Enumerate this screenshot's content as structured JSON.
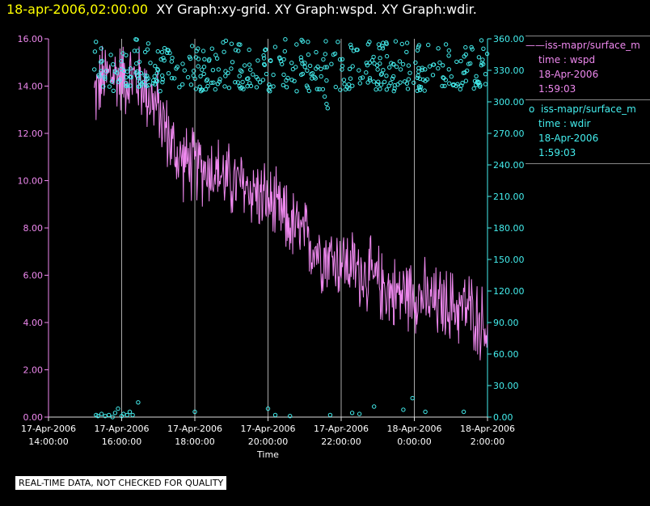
{
  "header": {
    "timestamp": "18-apr-2006,02:00:00",
    "graphs": "XY Graph:xy-grid.  XY Graph:wspd.  XY Graph:wdir."
  },
  "legend": {
    "series1": {
      "marker": "——",
      "name": "iss-mapr/surface_m",
      "var": "time : wspd",
      "date": "18-Apr-2006",
      "time": "1:59:03"
    },
    "series2": {
      "marker": "o",
      "name": "iss-mapr/surface_m",
      "var": "time : wdir",
      "date": "18-Apr-2006",
      "time": "1:59:03"
    }
  },
  "disclaimer": "REAL-TIME DATA, NOT CHECKED FOR QUALITY",
  "colors": {
    "wspd": "#ee88ee",
    "wdir": "#44eeee",
    "axis": "#dddddd",
    "grid": "#aaaaaa"
  },
  "chart_data": {
    "type": "line",
    "title": "XY Graph:xy-grid.  XY Graph:wspd.  XY Graph:wdir.",
    "xlabel": "Time",
    "ylabel_left": "",
    "ylabel_right": "",
    "xlim": [
      14.0,
      26.0
    ],
    "ylim_left": [
      0,
      16
    ],
    "ylim_right": [
      0,
      360
    ],
    "x_ticks": [
      {
        "value": 14,
        "line1": "17-Apr-2006",
        "line2": "14:00:00"
      },
      {
        "value": 16,
        "line1": "17-Apr-2006",
        "line2": "16:00:00"
      },
      {
        "value": 18,
        "line1": "17-Apr-2006",
        "line2": "18:00:00"
      },
      {
        "value": 20,
        "line1": "17-Apr-2006",
        "line2": "20:00:00"
      },
      {
        "value": 22,
        "line1": "17-Apr-2006",
        "line2": "22:00:00"
      },
      {
        "value": 24,
        "line1": "18-Apr-2006",
        "line2": "0:00:00"
      },
      {
        "value": 26,
        "line1": "18-Apr-2006",
        "line2": "2:00:00"
      }
    ],
    "y_left_ticks": [
      "0.00",
      "2.00",
      "4.00",
      "6.00",
      "8.00",
      "10.00",
      "12.00",
      "14.00",
      "16.00"
    ],
    "y_right_ticks": [
      "0.00",
      "30.00",
      "60.00",
      "90.00",
      "120.00",
      "150.00",
      "180.00",
      "210.00",
      "240.00",
      "270.00",
      "300.00",
      "330.00",
      "360.00"
    ],
    "series": [
      {
        "name": "wspd",
        "axis": "left",
        "style": "line",
        "start": 15.25,
        "end": 26.0,
        "trend_x": [
          15.25,
          15.5,
          15.75,
          16.0,
          16.5,
          17.0,
          17.5,
          18.0,
          18.5,
          19.0,
          19.5,
          20.0,
          20.5,
          21.0,
          21.5,
          22.0,
          22.5,
          23.0,
          23.5,
          24.0,
          24.5,
          25.0,
          25.5,
          26.0
        ],
        "trend_y": [
          13.6,
          14.3,
          14.5,
          14.4,
          14.2,
          13.0,
          11.0,
          10.6,
          10.5,
          9.9,
          9.7,
          9.1,
          8.3,
          7.6,
          6.9,
          6.6,
          6.2,
          5.7,
          5.2,
          5.3,
          4.8,
          4.7,
          4.6,
          3.7
        ],
        "noise": 1.3
      },
      {
        "name": "wdir",
        "axis": "right",
        "style": "scatter",
        "start": 15.25,
        "end": 26.0,
        "band_min": 310,
        "band_max": 360,
        "outliers": [
          {
            "x": 21.55,
            "y": 305
          },
          {
            "x": 21.6,
            "y": 298
          },
          {
            "x": 21.63,
            "y": 294
          },
          {
            "x": 21.5,
            "y": 312
          },
          {
            "x": 23.35,
            "y": 318
          },
          {
            "x": 23.4,
            "y": 322
          },
          {
            "x": 24.1,
            "y": 325
          },
          {
            "x": 24.15,
            "y": 322
          },
          {
            "x": 15.3,
            "y": 2
          },
          {
            "x": 15.35,
            "y": 1
          },
          {
            "x": 15.45,
            "y": 3
          },
          {
            "x": 15.55,
            "y": 1
          },
          {
            "x": 15.65,
            "y": 2
          },
          {
            "x": 15.75,
            "y": 0
          },
          {
            "x": 15.82,
            "y": 4
          },
          {
            "x": 15.9,
            "y": 8
          },
          {
            "x": 16.0,
            "y": 1
          },
          {
            "x": 16.05,
            "y": 3
          },
          {
            "x": 16.15,
            "y": 2
          },
          {
            "x": 16.22,
            "y": 5
          },
          {
            "x": 16.3,
            "y": 2
          },
          {
            "x": 16.45,
            "y": 14
          },
          {
            "x": 18.0,
            "y": 5
          },
          {
            "x": 20.0,
            "y": 8
          },
          {
            "x": 20.2,
            "y": 2
          },
          {
            "x": 20.6,
            "y": 1
          },
          {
            "x": 21.7,
            "y": 2
          },
          {
            "x": 22.3,
            "y": 4
          },
          {
            "x": 22.5,
            "y": 3
          },
          {
            "x": 22.9,
            "y": 10
          },
          {
            "x": 23.7,
            "y": 7
          },
          {
            "x": 23.95,
            "y": 18
          },
          {
            "x": 24.3,
            "y": 5
          },
          {
            "x": 25.35,
            "y": 5
          }
        ]
      }
    ]
  }
}
